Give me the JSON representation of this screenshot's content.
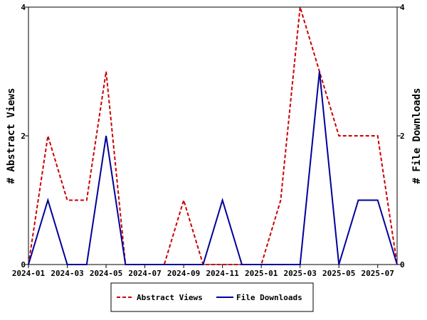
{
  "chart_data": {
    "type": "line",
    "title": "",
    "y_left_label": "# Abstract Views",
    "y_right_label": "# File Downloads",
    "ylim": [
      0,
      4
    ],
    "y_ticks": [
      0,
      2,
      4
    ],
    "y_tick_labels": [
      "0",
      "2",
      "4"
    ],
    "x_tick_labels": [
      "2024-01",
      "2024-03",
      "2024-05",
      "2024-07",
      "2024-09",
      "2024-11",
      "2025-01",
      "2025-03",
      "2025-05",
      "2025-07"
    ],
    "x": [
      "2024-01",
      "2024-02",
      "2024-03",
      "2024-04",
      "2024-05",
      "2024-06",
      "2024-07",
      "2024-08",
      "2024-09",
      "2024-10",
      "2024-11",
      "2024-12",
      "2025-01",
      "2025-02",
      "2025-03",
      "2025-04",
      "2025-05",
      "2025-06",
      "2025-07",
      "2025-08"
    ],
    "series": [
      {
        "name": "Abstract Views",
        "color": "#cc0000",
        "style": "dashed",
        "axis": "left",
        "values": [
          0,
          2,
          1,
          1,
          3,
          0,
          0,
          0,
          1,
          0,
          0,
          0,
          0,
          1,
          4,
          3,
          2,
          2,
          2,
          0
        ]
      },
      {
        "name": "File Downloads",
        "color": "#000099",
        "style": "solid",
        "axis": "right",
        "values": [
          0,
          1,
          0,
          0,
          2,
          0,
          0,
          0,
          0,
          0,
          1,
          0,
          0,
          0,
          0,
          3,
          0,
          1,
          1,
          0
        ]
      }
    ],
    "legend_position": "bottom-center",
    "grid": false
  }
}
